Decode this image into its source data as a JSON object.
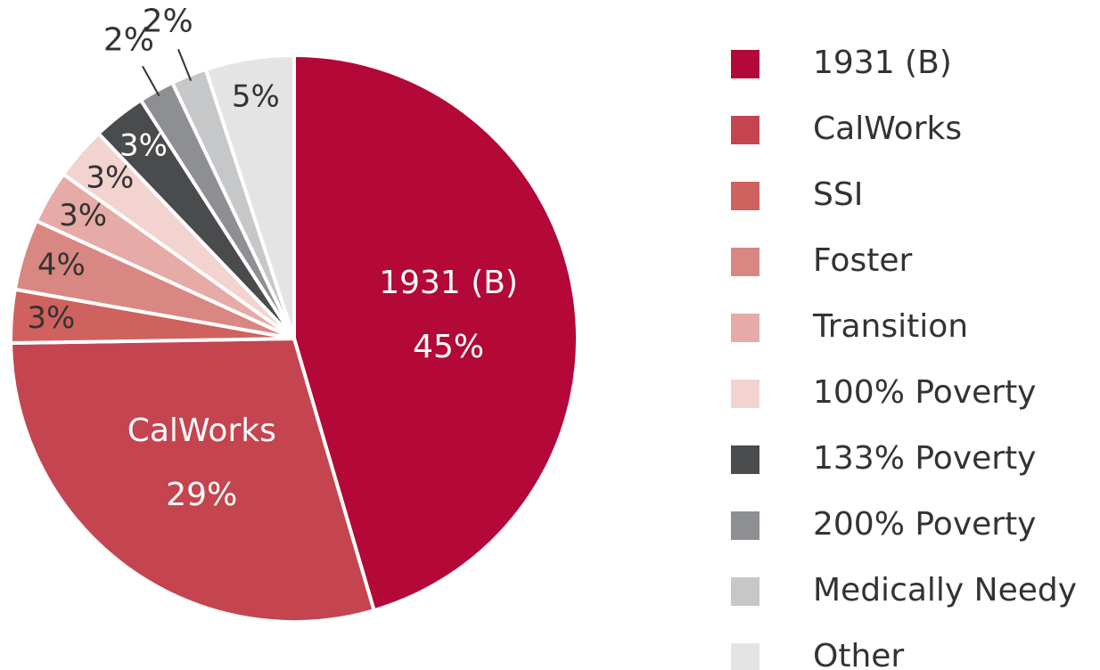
{
  "chart_data": {
    "type": "pie",
    "categories": [
      "1931 (B)",
      "CalWorks",
      "SSI",
      "Foster",
      "Transition",
      "100% Poverty",
      "133% Poverty",
      "200% Poverty",
      "Medically Needy",
      "Other"
    ],
    "values": [
      45,
      29,
      3,
      4,
      3,
      3,
      3,
      2,
      2,
      5
    ],
    "value_labels": [
      "45%",
      "29%",
      "3%",
      "4%",
      "3%",
      "3%",
      "3%",
      "2%",
      "2%",
      "5%"
    ],
    "colors": [
      "#b30838",
      "#c4454f",
      "#cf625f",
      "#d98782",
      "#e6aba6",
      "#f2d3d0",
      "#4a4b4d",
      "#8e8f92",
      "#c6c7c9",
      "#e4e4e5"
    ],
    "legend": "right"
  }
}
